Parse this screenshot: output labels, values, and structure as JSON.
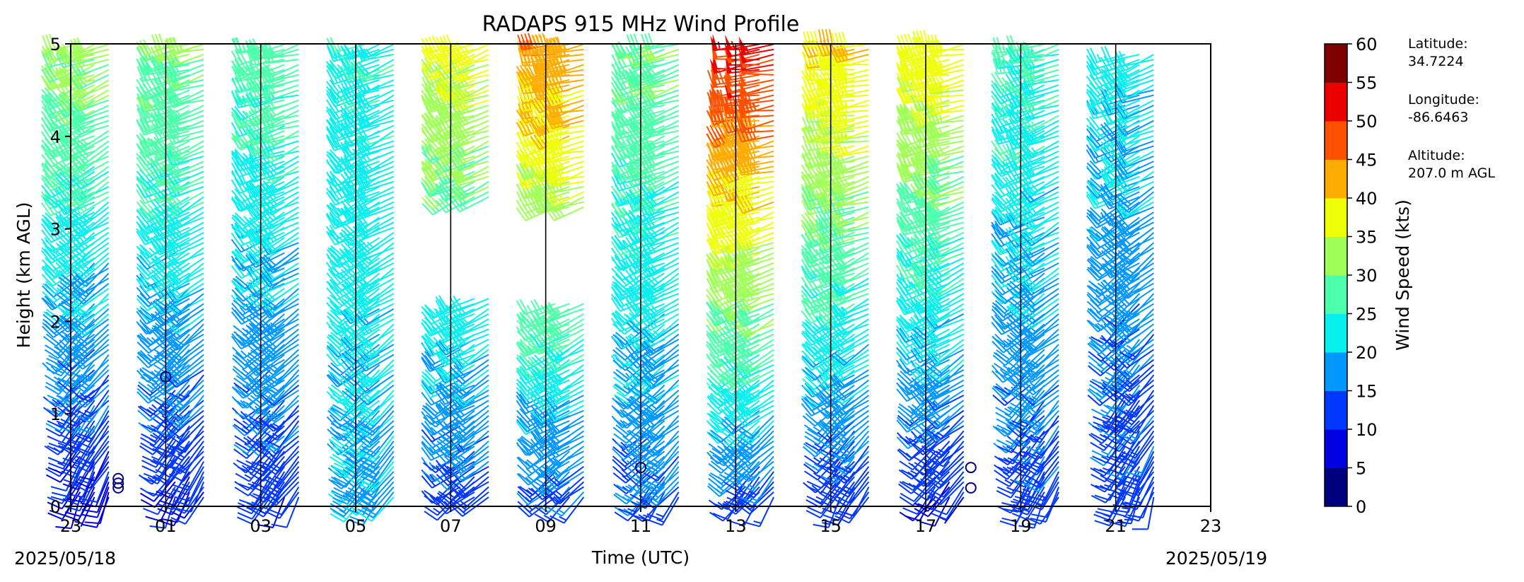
{
  "chart_data": {
    "type": "wind_barb_time_height",
    "title": "RADAPS 915 MHz Wind Profile",
    "xlabel": "Time (UTC)",
    "ylabel": "Height (km AGL)",
    "x_tick_labels": [
      "23",
      "01",
      "03",
      "05",
      "07",
      "09",
      "11",
      "13",
      "15",
      "17",
      "19",
      "21",
      "23"
    ],
    "x_range_hours": [
      23,
      47
    ],
    "start_date_label": "2025/05/18",
    "end_date_label": "2025/05/19",
    "y_ticks": [
      0,
      1,
      2,
      3,
      4,
      5
    ],
    "ylim": [
      0,
      5
    ],
    "colorbar": {
      "label": "Wind Speed (kts)",
      "ticks": [
        0,
        5,
        10,
        15,
        20,
        25,
        30,
        35,
        40,
        45,
        50,
        55,
        60
      ],
      "colors": [
        "#00007f",
        "#0000e0",
        "#0038ff",
        "#0098ff",
        "#08f0ee",
        "#4cffab",
        "#a0ff56",
        "#eeff08",
        "#ffac00",
        "#ff5000",
        "#ed0000",
        "#7f0000"
      ]
    },
    "profile_start_hours": [
      23,
      25,
      27,
      29,
      31,
      33,
      35,
      37,
      39,
      41,
      43,
      45
    ],
    "profiles": [
      {
        "times": [
          23.2,
          23.5,
          23.8
        ],
        "top_km": 5.0,
        "gap_km": null,
        "low_speed": 8,
        "high_speed": 32,
        "dir_low": 200,
        "dir_high": 250
      },
      {
        "times": [
          25.2,
          25.5,
          25.8
        ],
        "top_km": 5.0,
        "gap_km": null,
        "low_speed": 9,
        "high_speed": 31,
        "dir_low": 205,
        "dir_high": 255
      },
      {
        "times": [
          27.2,
          27.5,
          27.8
        ],
        "top_km": 5.0,
        "gap_km": null,
        "low_speed": 11,
        "high_speed": 28,
        "dir_low": 210,
        "dir_high": 255
      },
      {
        "times": [
          29.2,
          29.5,
          29.8
        ],
        "top_km": 5.0,
        "gap_km": null,
        "low_speed": 19,
        "high_speed": 24,
        "dir_low": 215,
        "dir_high": 250
      },
      {
        "times": [
          31.2,
          31.5,
          31.8
        ],
        "top_km": 5.0,
        "gap_km": [
          2.3,
          3.3
        ],
        "low_speed": 12,
        "high_speed": 36,
        "dir_low": 230,
        "dir_high": 250
      },
      {
        "times": [
          33.2,
          33.5,
          33.8
        ],
        "top_km": 5.0,
        "gap_km": [
          2.2,
          3.2
        ],
        "low_speed": 13,
        "high_speed": 44,
        "dir_low": 225,
        "dir_high": 260
      },
      {
        "times": [
          35.2,
          35.5,
          35.8
        ],
        "top_km": 5.0,
        "gap_km": null,
        "low_speed": 14,
        "high_speed": 30,
        "dir_low": 215,
        "dir_high": 255
      },
      {
        "times": [
          37.2,
          37.5,
          37.8
        ],
        "top_km": 5.0,
        "gap_km": null,
        "low_speed": 12,
        "high_speed": 52,
        "dir_low": 215,
        "dir_high": 265
      },
      {
        "times": [
          39.2,
          39.5,
          39.8
        ],
        "top_km": 5.0,
        "gap_km": null,
        "low_speed": 11,
        "high_speed": 40,
        "dir_low": 210,
        "dir_high": 265
      },
      {
        "times": [
          41.2,
          41.5,
          41.8
        ],
        "top_km": 5.0,
        "gap_km": null,
        "low_speed": 9,
        "high_speed": 38,
        "dir_low": 215,
        "dir_high": 260
      },
      {
        "times": [
          43.2,
          43.5,
          43.8
        ],
        "top_km": 5.0,
        "gap_km": null,
        "low_speed": 12,
        "high_speed": 26,
        "dir_low": 205,
        "dir_high": 255
      },
      {
        "times": [
          45.2,
          45.5,
          45.8
        ],
        "top_km": 4.9,
        "gap_km": null,
        "low_speed": 12,
        "high_speed": 22,
        "dir_low": 200,
        "dir_high": 250
      }
    ],
    "calm_markers": [
      {
        "t": 24.0,
        "h": 0.2
      },
      {
        "t": 24.0,
        "h": 0.25
      },
      {
        "t": 24.0,
        "h": 0.3
      },
      {
        "t": 25.0,
        "h": 1.4
      },
      {
        "t": 35.0,
        "h": 0.42
      },
      {
        "t": 41.95,
        "h": 0.2
      },
      {
        "t": 41.95,
        "h": 0.42
      }
    ]
  },
  "station_info": {
    "latitude_label": "Latitude:",
    "latitude_value": "34.7224",
    "longitude_label": "Longitude:",
    "longitude_value": "-86.6463",
    "altitude_label": "Altitude:",
    "altitude_value": "207.0 m AGL"
  }
}
